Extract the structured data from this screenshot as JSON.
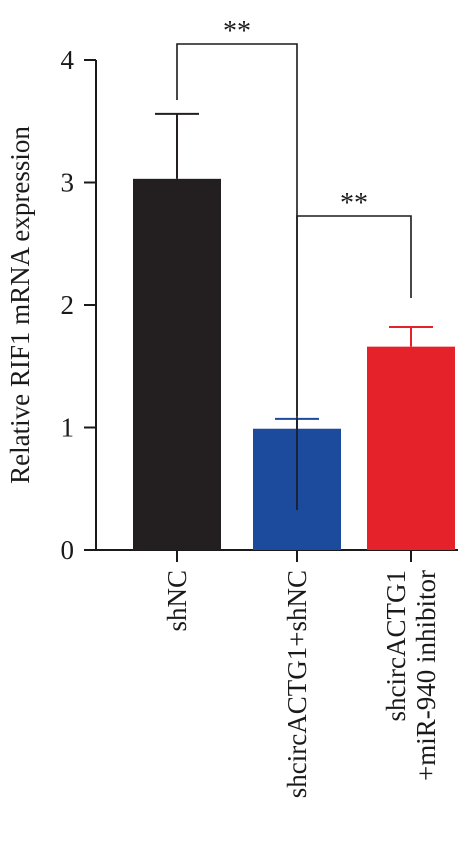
{
  "chart_data": {
    "type": "bar",
    "title": "",
    "xlabel": "",
    "ylabel": "Relative RIF1 mRNA expression",
    "ylim": [
      0,
      4
    ],
    "yticks": [
      0,
      1,
      2,
      3,
      4
    ],
    "grid": false,
    "categories": [
      {
        "lines": [
          "shNC"
        ]
      },
      {
        "lines": [
          "shcircACTG1+shNC"
        ]
      },
      {
        "lines": [
          "shcircACTG1",
          "+miR-940 inhibitor"
        ]
      }
    ],
    "values": [
      3.03,
      0.99,
      1.66
    ],
    "errors": [
      0.53,
      0.08,
      0.16
    ],
    "colors": [
      "#231f20",
      "#1c4a9c",
      "#e5212a"
    ],
    "significance": [
      {
        "from": 0,
        "to": 1,
        "label": "**"
      },
      {
        "from": 1,
        "to": 2,
        "label": "**"
      }
    ]
  }
}
